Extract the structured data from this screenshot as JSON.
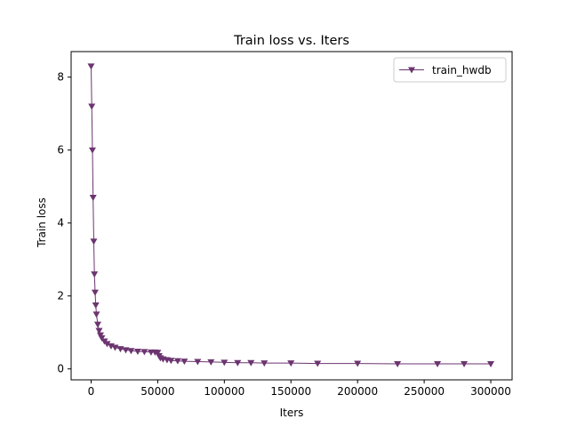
{
  "chart_data": {
    "type": "line",
    "title": "Train loss  vs. Iters",
    "xlabel": "Iters",
    "ylabel": "Train loss",
    "xlim": [
      -15000,
      316000
    ],
    "ylim": [
      -0.3,
      8.7
    ],
    "xticks": [
      0,
      50000,
      100000,
      150000,
      200000,
      250000,
      300000
    ],
    "yticks": [
      0,
      2,
      4,
      6,
      8
    ],
    "grid": false,
    "legend_position": "top-right",
    "series": [
      {
        "name": "train_hwdb",
        "color": "#6c3570",
        "marker": "triangle-down",
        "x": [
          0,
          500,
          1000,
          1500,
          2000,
          2500,
          3000,
          3500,
          4000,
          5000,
          6000,
          7000,
          8000,
          10000,
          12000,
          15000,
          18000,
          22000,
          26000,
          30000,
          35000,
          40000,
          45000,
          48000,
          50000,
          51000,
          52000,
          54000,
          57000,
          60000,
          65000,
          70000,
          80000,
          90000,
          100000,
          110000,
          120000,
          130000,
          150000,
          170000,
          200000,
          230000,
          260000,
          280000,
          300000
        ],
        "y": [
          8.3,
          7.2,
          6.0,
          4.7,
          3.5,
          2.6,
          2.1,
          1.75,
          1.5,
          1.22,
          1.05,
          0.93,
          0.85,
          0.76,
          0.69,
          0.63,
          0.59,
          0.55,
          0.52,
          0.5,
          0.48,
          0.47,
          0.46,
          0.46,
          0.45,
          0.36,
          0.3,
          0.27,
          0.25,
          0.23,
          0.22,
          0.21,
          0.2,
          0.19,
          0.18,
          0.17,
          0.17,
          0.16,
          0.16,
          0.15,
          0.15,
          0.14,
          0.14,
          0.14,
          0.14
        ]
      }
    ]
  }
}
